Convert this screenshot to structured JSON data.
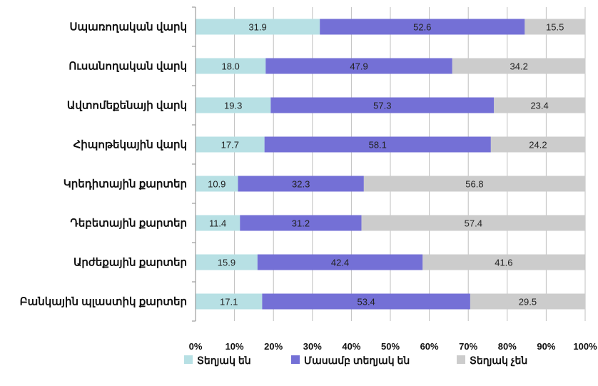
{
  "chart_data": {
    "type": "bar",
    "orientation": "horizontal",
    "stacked": "percent",
    "categories": [
      "Սպառողական վարկ",
      "Ուսանողական վարկ",
      "Ավտոմեքենայի վարկ",
      "Հիպոթեկային վարկ",
      "Կրեդիտային քարտեր",
      "Դեբետային քարտեր",
      "Արժեքային քարտեր",
      "Բանկային պլաստիկ քարտեր"
    ],
    "series": [
      {
        "name": "Տեղյակ են",
        "color": "#b7e0e4",
        "values": [
          31.9,
          18.0,
          19.3,
          17.7,
          10.9,
          11.4,
          15.9,
          17.1
        ]
      },
      {
        "name": "Մասամբ տեղյակ են",
        "color": "#7470d6",
        "values": [
          52.6,
          47.9,
          57.3,
          58.1,
          32.3,
          31.2,
          42.4,
          53.4
        ]
      },
      {
        "name": "Տեղյակ չեն",
        "color": "#cccccc",
        "values": [
          15.5,
          34.2,
          23.4,
          24.2,
          56.8,
          57.4,
          41.6,
          29.5
        ]
      }
    ],
    "value_labels": [
      [
        "31.9",
        "18.0",
        "19.3",
        "17.7",
        "10.9",
        "11.4",
        "15.9",
        "17.1"
      ],
      [
        "52.6",
        "47.9",
        "57.3",
        "58.1",
        "32.3",
        "31.2",
        "42.4",
        "53.4"
      ],
      [
        "15.5",
        "34.2",
        "23.4",
        "24.2",
        "56.8",
        "57.4",
        "41.6",
        "29.5"
      ]
    ],
    "x_ticks": [
      "0%",
      "10%",
      "20%",
      "30%",
      "40%",
      "50%",
      "60%",
      "70%",
      "80%",
      "90%",
      "100%"
    ],
    "xlim": [
      0,
      100
    ],
    "grid": true,
    "legend_position": "bottom"
  }
}
